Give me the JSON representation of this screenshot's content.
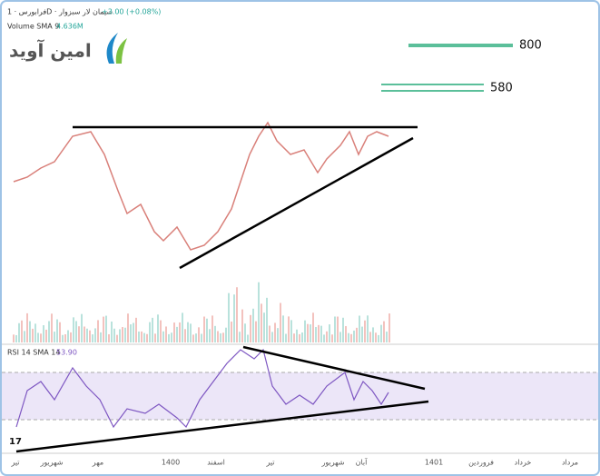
{
  "header": {
    "symbol": "فرابورس · 1D · سیمان لار سبزوار",
    "change": "+3.00 (+0.08%)",
    "volume_label": "Volume SMA 9",
    "volume_value": "4.636M"
  },
  "logo": {
    "text": "امین آوید"
  },
  "levels": {
    "upper": "800",
    "lower": "580"
  },
  "rsi": {
    "label": "RSI 14 SMA 14",
    "value": "53.90"
  },
  "tv_logo": "17",
  "x_axis": {
    "labels": [
      "تیر",
      "شهریور",
      "مهر",
      "1400",
      "اسفند",
      "تیر",
      "شهریور",
      "آبان",
      "1401",
      "فروردین",
      "خرداد",
      "مرداد"
    ]
  }
}
